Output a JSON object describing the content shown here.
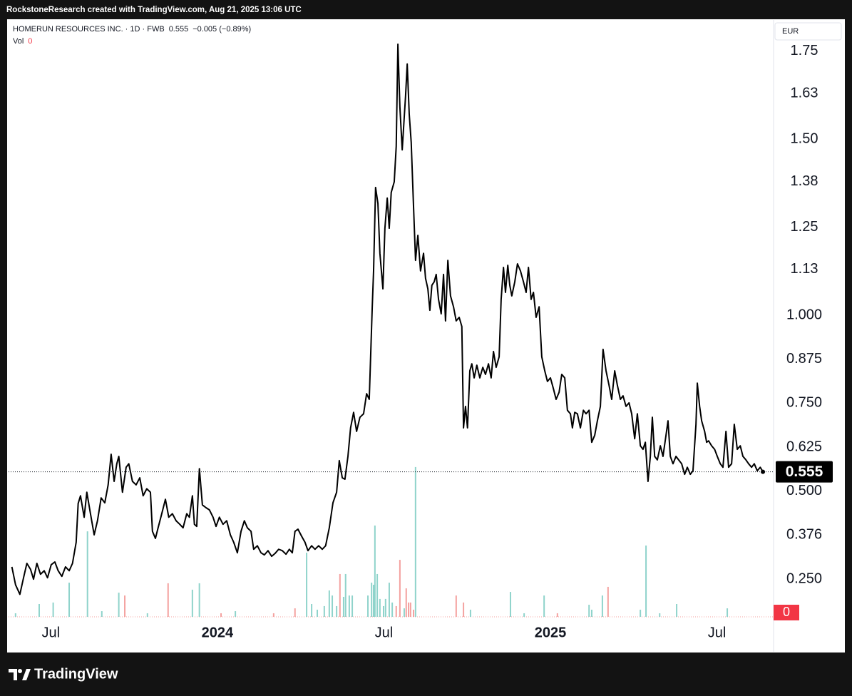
{
  "caption": "RockstoneResearch created with TradingView.com, Aug 21, 2025 13:06 UTC",
  "brand": "TradingView",
  "chart_data": {
    "type": "line",
    "title": "HOMERUN RESOURCES INC. · 1D · FWB",
    "last_price": 0.555,
    "last_change": "−0.005 (−0.89%)",
    "volume_last": 0,
    "currency": "EUR",
    "grid": false,
    "xlim": [
      2023.373,
      2025.67
    ],
    "xticks": [
      {
        "value": 2023.5,
        "label": "Jul"
      },
      {
        "value": 2024,
        "label": "2024"
      },
      {
        "value": 2024.5,
        "label": "Jul"
      },
      {
        "value": 2025,
        "label": "2025"
      },
      {
        "value": 2025.5,
        "label": "Jul"
      }
    ],
    "ylim": [
      0.143,
      1.839
    ],
    "yticks": [
      1.75,
      1.63,
      {
        "value": 1.5,
        "label": "1.50"
      },
      1.38,
      1.25,
      1.13,
      {
        "value": 1,
        "label": "1.000"
      },
      0.875,
      {
        "value": 0.75,
        "label": "0.750"
      },
      0.625,
      {
        "value": 0.5,
        "label": "0.500"
      },
      0.376,
      {
        "value": 0.25,
        "label": "0.250"
      }
    ],
    "y2lim": [
      0,
      400
    ],
    "y2ticks": [
      0
    ],
    "series": [
      {
        "color": "#000000",
        "x": [
          2023.383,
          2023.394,
          2023.407,
          2023.418,
          2023.428,
          2023.439,
          2023.448,
          2023.458,
          2023.469,
          2023.48,
          2023.49,
          2023.501,
          2023.512,
          2023.522,
          2023.533,
          2023.544,
          2023.555,
          2023.565,
          2023.576,
          2023.582,
          2023.589,
          2023.6,
          2023.608,
          2023.619,
          2023.63,
          2023.64,
          2023.651,
          2023.662,
          2023.672,
          2023.681,
          2023.69,
          2023.698,
          2023.704,
          2023.715,
          2023.726,
          2023.734,
          2023.745,
          2023.756,
          2023.767,
          2023.777,
          2023.788,
          2023.799,
          2023.805,
          2023.814,
          2023.822,
          2023.833,
          2023.844,
          2023.854,
          2023.865,
          2023.876,
          2023.887,
          2023.897,
          2023.908,
          2023.916,
          2023.925,
          2023.931,
          2023.938,
          2023.946,
          2023.955,
          2023.966,
          2023.976,
          2023.987,
          2023.996,
          2024.006,
          2024.017,
          2024.028,
          2024.039,
          2024.049,
          2024.06,
          2024.071,
          2024.081,
          2024.09,
          2024.101,
          2024.109,
          2024.12,
          2024.131,
          2024.141,
          2024.152,
          2024.163,
          2024.173,
          2024.184,
          2024.195,
          2024.206,
          2024.216,
          2024.225,
          2024.233,
          2024.242,
          2024.253,
          2024.263,
          2024.272,
          2024.283,
          2024.293,
          2024.304,
          2024.315,
          2024.325,
          2024.336,
          2024.347,
          2024.358,
          2024.366,
          2024.375,
          2024.383,
          2024.392,
          2024.4,
          2024.409,
          2024.418,
          2024.428,
          2024.439,
          2024.448,
          2024.456,
          2024.465,
          2024.469,
          2024.475,
          2024.482,
          2024.488,
          2024.497,
          2024.503,
          2024.51,
          2024.516,
          2024.522,
          2024.531,
          2024.537,
          2024.542,
          2024.548,
          2024.555,
          2024.561,
          2024.565,
          2024.57,
          2024.576,
          2024.582,
          2024.589,
          2024.595,
          2024.602,
          2024.61,
          2024.619,
          2024.625,
          2024.632,
          2024.638,
          2024.644,
          2024.651,
          2024.657,
          2024.664,
          2024.672,
          2024.679,
          2024.685,
          2024.692,
          2024.7,
          2024.709,
          2024.717,
          2024.726,
          2024.734,
          2024.739,
          2024.745,
          2024.751,
          2024.758,
          2024.764,
          2024.771,
          2024.779,
          2024.788,
          2024.797,
          2024.805,
          2024.814,
          2024.822,
          2024.829,
          2024.837,
          2024.846,
          2024.852,
          2024.859,
          2024.865,
          2024.872,
          2024.878,
          2024.884,
          2024.893,
          2024.901,
          2024.91,
          2024.919,
          2024.927,
          2024.934,
          2024.942,
          2024.949,
          2024.957,
          2024.966,
          2024.974,
          2024.983,
          2024.991,
          2025.0,
          2025.009,
          2025.017,
          2025.026,
          2025.034,
          2025.043,
          2025.051,
          2025.06,
          2025.066,
          2025.073,
          2025.081,
          2025.09,
          2025.099,
          2025.107,
          2025.116,
          2025.124,
          2025.133,
          2025.141,
          2025.15,
          2025.158,
          2025.167,
          2025.176,
          2025.184,
          2025.193,
          2025.201,
          2025.21,
          2025.218,
          2025.227,
          2025.236,
          2025.244,
          2025.253,
          2025.261,
          2025.27,
          2025.278,
          2025.285,
          2025.293,
          2025.3,
          2025.306,
          2025.313,
          2025.321,
          2025.33,
          2025.338,
          2025.347,
          2025.353,
          2025.36,
          2025.368,
          2025.377,
          2025.385,
          2025.394,
          2025.403,
          2025.411,
          2025.42,
          2025.428,
          2025.437,
          2025.441,
          2025.448,
          2025.454,
          2025.463,
          2025.469,
          2025.475,
          2025.484,
          2025.493,
          2025.501,
          2025.51,
          2025.518,
          2025.527,
          2025.535,
          2025.544,
          2025.552,
          2025.561,
          2025.57,
          2025.578,
          2025.587,
          2025.595,
          2025.604,
          2025.612,
          2025.621,
          2025.63,
          2025.638
        ],
        "values": [
          0.285,
          0.234,
          0.207,
          0.254,
          0.295,
          0.278,
          0.25,
          0.295,
          0.264,
          0.274,
          0.254,
          0.291,
          0.299,
          0.274,
          0.258,
          0.285,
          0.274,
          0.295,
          0.355,
          0.465,
          0.487,
          0.426,
          0.497,
          0.436,
          0.376,
          0.416,
          0.481,
          0.467,
          0.518,
          0.605,
          0.528,
          0.578,
          0.599,
          0.497,
          0.568,
          0.578,
          0.528,
          0.518,
          0.538,
          0.487,
          0.507,
          0.497,
          0.386,
          0.366,
          0.396,
          0.436,
          0.477,
          0.426,
          0.436,
          0.416,
          0.406,
          0.396,
          0.436,
          0.426,
          0.487,
          0.406,
          0.4,
          0.564,
          0.461,
          0.453,
          0.447,
          0.426,
          0.4,
          0.426,
          0.406,
          0.416,
          0.376,
          0.355,
          0.325,
          0.386,
          0.416,
          0.396,
          0.386,
          0.335,
          0.345,
          0.325,
          0.319,
          0.331,
          0.315,
          0.323,
          0.335,
          0.331,
          0.321,
          0.335,
          0.325,
          0.386,
          0.392,
          0.372,
          0.355,
          0.331,
          0.345,
          0.335,
          0.345,
          0.335,
          0.345,
          0.396,
          0.467,
          0.497,
          0.587,
          0.538,
          0.534,
          0.599,
          0.68,
          0.724,
          0.67,
          0.71,
          0.72,
          0.777,
          0.761,
          1.024,
          1.126,
          1.363,
          1.318,
          1.176,
          1.075,
          1.247,
          1.333,
          1.247,
          1.349,
          1.379,
          1.48,
          1.77,
          1.592,
          1.47,
          1.562,
          1.622,
          1.714,
          1.572,
          1.491,
          1.308,
          1.156,
          1.227,
          1.126,
          1.176,
          1.105,
          1.075,
          1.014,
          1.085,
          1.095,
          1.116,
          1.045,
          1.004,
          1.116,
          0.984,
          1.156,
          1.055,
          1.024,
          0.984,
          0.994,
          0.968,
          0.68,
          0.741,
          0.68,
          0.842,
          0.862,
          0.822,
          0.858,
          0.822,
          0.852,
          0.832,
          0.862,
          0.822,
          0.897,
          0.852,
          0.882,
          1.045,
          1.136,
          1.065,
          1.142,
          1.085,
          1.055,
          1.095,
          1.146,
          1.126,
          1.095,
          1.065,
          1.136,
          1.045,
          1.065,
          0.994,
          1.024,
          0.882,
          0.842,
          0.812,
          0.822,
          0.791,
          0.761,
          0.781,
          0.832,
          0.822,
          0.73,
          0.72,
          0.68,
          0.724,
          0.72,
          0.68,
          0.73,
          0.72,
          0.73,
          0.639,
          0.659,
          0.7,
          0.741,
          0.903,
          0.842,
          0.801,
          0.761,
          0.842,
          0.801,
          0.761,
          0.771,
          0.741,
          0.751,
          0.72,
          0.649,
          0.72,
          0.629,
          0.619,
          0.639,
          0.528,
          0.599,
          0.71,
          0.599,
          0.589,
          0.629,
          0.599,
          0.659,
          0.7,
          0.599,
          0.578,
          0.599,
          0.589,
          0.578,
          0.548,
          0.568,
          0.548,
          0.558,
          0.69,
          0.807,
          0.741,
          0.7,
          0.67,
          0.639,
          0.643,
          0.629,
          0.619,
          0.599,
          0.578,
          0.568,
          0.67,
          0.568,
          0.578,
          0.69,
          0.619,
          0.629,
          0.599,
          0.589,
          0.578,
          0.568,
          0.578,
          0.558,
          0.568,
          0.555
        ]
      },
      {
        "name": "Vol",
        "type": "bar",
        "axis": "y2",
        "x": [
          2023.394,
          2023.465,
          2023.507,
          2023.555,
          2023.61,
          2023.653,
          2023.704,
          2023.722,
          2023.79,
          2023.852,
          2023.925,
          2023.946,
          2024.011,
          2024.054,
          2024.169,
          2024.233,
          2024.268,
          2024.283,
          2024.3,
          2024.321,
          2024.336,
          2024.345,
          2024.358,
          2024.368,
          2024.379,
          2024.385,
          2024.396,
          2024.405,
          2024.452,
          2024.463,
          2024.469,
          2024.473,
          2024.48,
          2024.488,
          2024.499,
          2024.505,
          2024.516,
          2024.525,
          2024.537,
          2024.548,
          2024.561,
          2024.567,
          2024.574,
          2024.58,
          2024.589,
          2024.595,
          2024.717,
          2024.739,
          2024.76,
          2024.88,
          2024.921,
          2024.981,
          2025.021,
          2025.116,
          2025.124,
          2025.156,
          2025.173,
          2025.27,
          2025.287,
          2025.328,
          2025.379,
          2025.531
        ],
        "values": [
          2.4,
          8.6,
          9.6,
          22.9,
          57.3,
          3.8,
          16.2,
          14.3,
          2.4,
          22.5,
          18.2,
          22.5,
          2.4,
          3.8,
          2.4,
          5.7,
          43,
          8.6,
          4.8,
          7.2,
          17.7,
          14.3,
          7.2,
          28.7,
          13.4,
          28.7,
          14.3,
          14.3,
          14.3,
          22.9,
          21.5,
          61.2,
          28.7,
          12,
          7.2,
          12,
          22.9,
          9.6,
          7.2,
          38.2,
          5.7,
          19.1,
          9.6,
          9.6,
          4.8,
          100.4,
          14.3,
          9.6,
          4.8,
          16.7,
          2.4,
          14.3,
          2.4,
          8.1,
          4.8,
          14.3,
          20.1,
          4.8,
          47.8,
          2.4,
          8.6,
          5.7
        ],
        "colors": [
          "#8fd3cb",
          "#8fd3cb",
          "#8fd3cb",
          "#8fd3cb",
          "#8fd3cb",
          "#8fd3cb",
          "#8fd3cb",
          "#f4a19f",
          "#8fd3cb",
          "#f4a19f",
          "#8fd3cb",
          "#8fd3cb",
          "#f4a19f",
          "#8fd3cb",
          "#f4a19f",
          "#f4a19f",
          "#8fd3cb",
          "#8fd3cb",
          "#8fd3cb",
          "#8fd3cb",
          "#8fd3cb",
          "#8fd3cb",
          "#8fd3cb",
          "#f4a19f",
          "#8fd3cb",
          "#8fd3cb",
          "#8fd3cb",
          "#8fd3cb",
          "#8fd3cb",
          "#8fd3cb",
          "#8fd3cb",
          "#8fd3cb",
          "#8fd3cb",
          "#8fd3cb",
          "#8fd3cb",
          "#8fd3cb",
          "#8fd3cb",
          "#8fd3cb",
          "#f4a19f",
          "#f4a19f",
          "#8fd3cb",
          "#f4a19f",
          "#f4a19f",
          "#f4a19f",
          "#f4a19f",
          "#8fd3cb",
          "#f4a19f",
          "#f4a19f",
          "#8fd3cb",
          "#8fd3cb",
          "#8fd3cb",
          "#8fd3cb",
          "#f4a19f",
          "#8fd3cb",
          "#8fd3cb",
          "#8fd3cb",
          "#f4a19f",
          "#8fd3cb",
          "#8fd3cb",
          "#8fd3cb",
          "#8fd3cb",
          "#8fd3cb"
        ]
      }
    ]
  }
}
